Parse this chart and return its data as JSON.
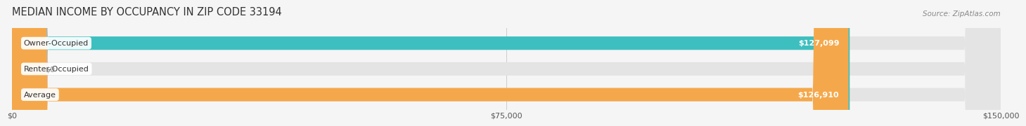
{
  "title": "MEDIAN INCOME BY OCCUPANCY IN ZIP CODE 33194",
  "source": "Source: ZipAtlas.com",
  "categories": [
    "Owner-Occupied",
    "Renter-Occupied",
    "Average"
  ],
  "values": [
    127099,
    0,
    126910
  ],
  "bar_colors": [
    "#3dbfbf",
    "#c9a8d4",
    "#f5a84b"
  ],
  "bar_labels": [
    "$127,099",
    "$0",
    "$126,910"
  ],
  "xlim": [
    0,
    150000
  ],
  "xticks": [
    0,
    75000,
    150000
  ],
  "xtick_labels": [
    "$0",
    "$75,000",
    "$150,000"
  ],
  "background_color": "#f5f5f5",
  "bar_bg_color": "#e4e4e4",
  "title_fontsize": 10.5,
  "label_fontsize": 8.0,
  "value_fontsize": 8.0,
  "source_fontsize": 7.5,
  "bar_height": 0.52,
  "renter_value_color": "#888888",
  "renter_bar_value": 3500
}
